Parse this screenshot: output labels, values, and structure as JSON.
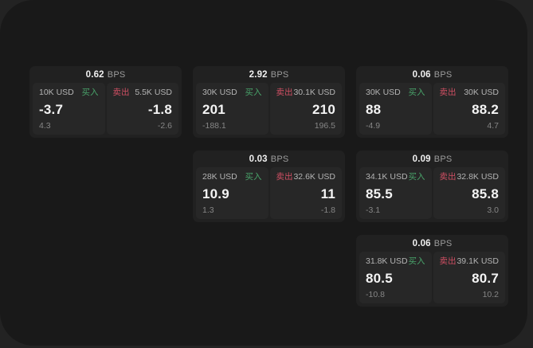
{
  "colors": {
    "buy_green": "#49a36a",
    "sell_red": "#cf4f63",
    "window_bg": "#191919",
    "card_bg": "#212121",
    "panel_bg": "#272727"
  },
  "labels": {
    "bps": "BPS",
    "buy": "买入",
    "sell": "卖出"
  },
  "cards": [
    {
      "bps": "0.62",
      "buy": {
        "amount": "10K USD",
        "value": "-3.7",
        "delta": "4.3"
      },
      "sell": {
        "amount": "5.5K USD",
        "value": "-1.8",
        "delta": "-2.6"
      }
    },
    {
      "bps": "2.92",
      "buy": {
        "amount": "30K USD",
        "value": "201",
        "delta": "-188.1"
      },
      "sell": {
        "amount": "30.1K USD",
        "value": "210",
        "delta": "196.5"
      }
    },
    {
      "bps": "0.06",
      "buy": {
        "amount": "30K USD",
        "value": "88",
        "delta": "-4.9"
      },
      "sell": {
        "amount": "30K USD",
        "value": "88.2",
        "delta": "4.7"
      }
    },
    {
      "bps": "0.03",
      "buy": {
        "amount": "28K USD",
        "value": "10.9",
        "delta": "1.3"
      },
      "sell": {
        "amount": "32.6K USD",
        "value": "11",
        "delta": "-1.8"
      }
    },
    {
      "bps": "0.09",
      "buy": {
        "amount": "34.1K USD",
        "value": "85.5",
        "delta": "-3.1"
      },
      "sell": {
        "amount": "32.8K USD",
        "value": "85.8",
        "delta": "3.0"
      }
    },
    {
      "bps": "0.06",
      "buy": {
        "amount": "31.8K USD",
        "value": "80.5",
        "delta": "-10.8"
      },
      "sell": {
        "amount": "39.1K USD",
        "value": "80.7",
        "delta": "10.2"
      }
    }
  ]
}
